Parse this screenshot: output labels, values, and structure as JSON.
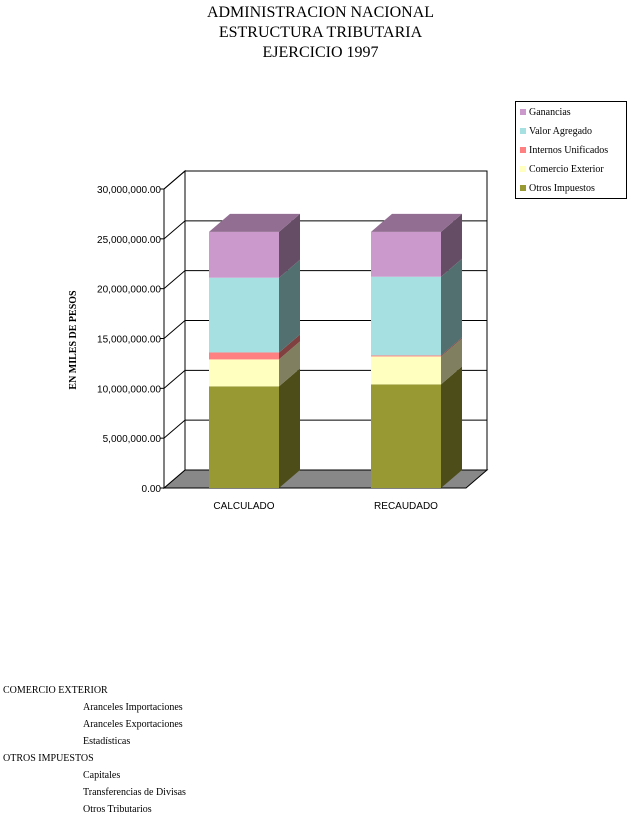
{
  "title": {
    "line1": "ADMINISTRACION NACIONAL",
    "line2": "ESTRUCTURA TRIBUTARIA",
    "line3": "EJERCICIO 1997"
  },
  "chart_data": {
    "type": "bar",
    "stacked": true,
    "three_d": true,
    "categories": [
      "CALCULADO",
      "RECAUDADO"
    ],
    "ylabel": "EN MILES DE PESOS",
    "ylim": [
      0,
      30000000
    ],
    "yticks": [
      "0.00",
      "5,000,000.00",
      "10,000,000.00",
      "15,000,000.00",
      "20,000,000.00",
      "25,000,000.00",
      "30,000,000.00"
    ],
    "grid": true,
    "legend_position": "top-right",
    "series": [
      {
        "name": "Otros Impuestos",
        "color": "#999933",
        "values": [
          10200000,
          10400000
        ]
      },
      {
        "name": "Comercio Exterior",
        "color": "#FFFFC0",
        "values": [
          2700000,
          2800000
        ]
      },
      {
        "name": "Internos Unificados",
        "color": "#FF8080",
        "values": [
          700000,
          100000
        ]
      },
      {
        "name": "Valor Agregado",
        "color": "#A6E0E0",
        "values": [
          7500000,
          7900000
        ]
      },
      {
        "name": "Ganancias",
        "color": "#CC99CC",
        "values": [
          4600000,
          4500000
        ]
      }
    ]
  },
  "legend": {
    "items": [
      {
        "label": "Ganancias",
        "color": "#CC99CC"
      },
      {
        "label": "Valor Agregado",
        "color": "#A6E0E0"
      },
      {
        "label": "Internos Unificados",
        "color": "#FF8080"
      },
      {
        "label": "Comercio Exterior",
        "color": "#FFFFC0"
      },
      {
        "label": "Otros Impuestos",
        "color": "#999933"
      }
    ]
  },
  "notes": [
    {
      "category": "COMERCIO EXTERIOR",
      "items": [
        "Aranceles Importaciones",
        "Aranceles Exportaciones",
        "Estadísticas"
      ]
    },
    {
      "category": "OTROS IMPUESTOS",
      "items": [
        "Capitales",
        "Transferencias de Divisas",
        "Otros Tributarios"
      ]
    }
  ]
}
